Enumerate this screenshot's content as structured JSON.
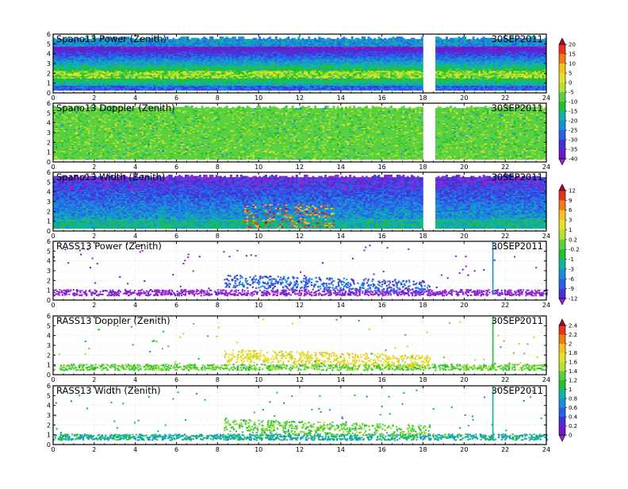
{
  "date_label": "30SEP2011",
  "colorscale_power_doppler": {
    "ticks": [
      "20",
      "15",
      "10",
      "5",
      "0",
      "-5",
      "-10",
      "-15",
      "-20",
      "-25",
      "-30",
      "-35",
      "-40"
    ],
    "colors": [
      "#b8003c",
      "#e8341c",
      "#f07c14",
      "#f8c020",
      "#e8e020",
      "#b4e030",
      "#58d040",
      "#20c030",
      "#10b4a0",
      "#1890d8",
      "#2860e8",
      "#4830d8",
      "#7018c8",
      "#a020d0"
    ]
  },
  "colorscale_width": {
    "ticks": [
      "12",
      "9",
      "6",
      "3",
      "1",
      "0.2",
      "-0.2",
      "-1",
      "-3",
      "-6",
      "-9",
      "-12"
    ],
    "colors": [
      "#b8003c",
      "#e8341c",
      "#f07c14",
      "#f8c020",
      "#e8e020",
      "#b4e030",
      "#58d040",
      "#20c030",
      "#10b4a0",
      "#1890d8",
      "#2860e8",
      "#4830d8",
      "#a020d0"
    ]
  },
  "colorscale_rass": {
    "ticks": [
      "2.4",
      "2.2",
      "2",
      "1.8",
      "1.6",
      "1.4",
      "1.2",
      "1",
      "0.8",
      "0.6",
      "0.4",
      "0.2",
      "0"
    ],
    "colors": [
      "#b8003c",
      "#e8341c",
      "#f07c14",
      "#f8c020",
      "#e8e020",
      "#b4e030",
      "#58d040",
      "#20c030",
      "#10b4a0",
      "#1890d8",
      "#2860e8",
      "#4830d8",
      "#7018c8",
      "#a020d0"
    ]
  },
  "chart_data": [
    {
      "type": "heatmap",
      "title": "Spano13 Power (Zenith)",
      "x": {
        "range": [
          0,
          24
        ],
        "ticks": [
          0,
          2,
          4,
          6,
          8,
          10,
          12,
          14,
          16,
          18,
          20,
          22,
          24
        ]
      },
      "y": {
        "range": [
          0,
          6
        ],
        "ticks": [
          0,
          1,
          2,
          3,
          4,
          5,
          6
        ]
      },
      "colorbar": "colorscale_power_doppler",
      "description_of_field": {
        "top_km": 5.7,
        "bright_band_km": [
          1.5,
          2.5
        ],
        "gaps_hours": [
          [
            18.0,
            18.6
          ]
        ]
      }
    },
    {
      "type": "heatmap",
      "title": "Spano13 Doppler (Zenith)",
      "x": {
        "range": [
          0,
          24
        ],
        "ticks": [
          0,
          2,
          4,
          6,
          8,
          10,
          12,
          14,
          16,
          18,
          20,
          22,
          24
        ]
      },
      "y": {
        "range": [
          0,
          6
        ],
        "ticks": [
          0,
          1,
          2,
          3,
          4,
          5,
          6
        ]
      },
      "colorbar": "colorscale_power_doppler",
      "description_of_field": {
        "top_km": 5.7,
        "gaps_hours": [
          [
            18.0,
            18.6
          ]
        ]
      }
    },
    {
      "type": "heatmap",
      "title": "Spano13 Width (Zenith)",
      "x": {
        "range": [
          0,
          24
        ],
        "ticks": [
          0,
          2,
          4,
          6,
          8,
          10,
          12,
          14,
          16,
          18,
          20,
          22,
          24
        ]
      },
      "y": {
        "range": [
          0,
          6
        ],
        "ticks": [
          0,
          1,
          2,
          3,
          4,
          5,
          6
        ]
      },
      "colorbar": "colorscale_width",
      "description_of_field": {
        "top_km": 5.7,
        "hot_spots_hours": [
          [
            9.5,
            13.5
          ]
        ],
        "gaps_hours": [
          [
            18.0,
            18.6
          ]
        ]
      }
    },
    {
      "type": "scatter",
      "title": "RASS13 Power (Zenith)",
      "x": {
        "range": [
          0,
          24
        ],
        "ticks": [
          0,
          2,
          4,
          6,
          8,
          10,
          12,
          14,
          16,
          18,
          20,
          22,
          24
        ]
      },
      "y": {
        "range": [
          0,
          6
        ],
        "ticks": [
          0,
          1,
          2,
          3,
          4,
          5,
          6
        ]
      },
      "colorbar": "colorscale_width",
      "description_of_field": {
        "main_layer_km": 0.7,
        "upper_layer_km": [
          1.8,
          2.6
        ],
        "vertical_spike_hour": 21.4
      }
    },
    {
      "type": "scatter",
      "title": "RASS13 Doppler (Zenith)",
      "x": {
        "range": [
          0,
          24
        ],
        "ticks": [
          0,
          2,
          4,
          6,
          8,
          10,
          12,
          14,
          16,
          18,
          20,
          22,
          24
        ]
      },
      "y": {
        "range": [
          0,
          6
        ],
        "ticks": [
          0,
          1,
          2,
          3,
          4,
          5,
          6
        ]
      },
      "colorbar": "colorscale_rass",
      "description_of_field": {
        "main_layer_km": 0.7,
        "upper_layer_km": [
          1.8,
          2.6
        ],
        "vertical_spike_hour": 21.4
      }
    },
    {
      "type": "scatter",
      "title": "RASS13 Width (Zenith)",
      "x": {
        "range": [
          0,
          24
        ],
        "ticks": [
          0,
          2,
          4,
          6,
          8,
          10,
          12,
          14,
          16,
          18,
          20,
          22,
          24
        ]
      },
      "y": {
        "range": [
          0,
          6
        ],
        "ticks": [
          0,
          1,
          2,
          3,
          4,
          5,
          6
        ]
      },
      "colorbar": "colorscale_rass",
      "description_of_field": {
        "main_layer_km": 0.7,
        "upper_layer_km": [
          1.8,
          2.6
        ],
        "vertical_spike_hour": 21.4
      }
    }
  ]
}
